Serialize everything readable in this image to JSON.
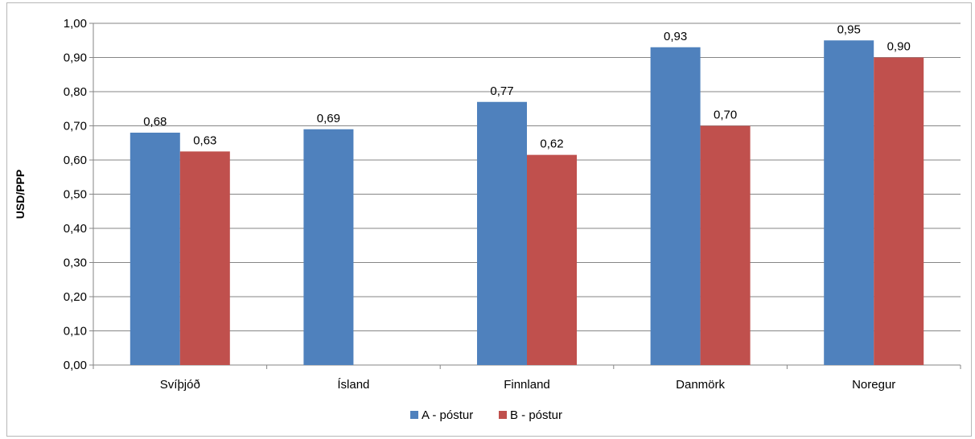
{
  "chart_data": {
    "type": "bar",
    "title": "",
    "xlabel": "",
    "ylabel": "USD/PPP",
    "ylim": [
      0,
      1.0
    ],
    "yticks": [
      "0,00",
      "0,10",
      "0,20",
      "0,30",
      "0,40",
      "0,50",
      "0,60",
      "0,70",
      "0,80",
      "0,90",
      "1,00"
    ],
    "grid": true,
    "legend_position": "bottom",
    "categories": [
      "Svíþjóð",
      "Ísland",
      "Finnland",
      "Danmörk",
      "Noregur"
    ],
    "series": [
      {
        "name": "A - póstur",
        "color": "#4f81bd",
        "values": [
          0.68,
          0.69,
          0.77,
          0.93,
          0.95
        ],
        "labels": [
          "0,68",
          "0,69",
          "0,77",
          "0,93",
          "0,95"
        ]
      },
      {
        "name": "B - póstur",
        "color": "#c0504d",
        "values": [
          0.625,
          null,
          0.615,
          0.7,
          0.9
        ],
        "labels": [
          "0,63",
          null,
          "0,62",
          "0,70",
          "0,90"
        ]
      }
    ]
  }
}
